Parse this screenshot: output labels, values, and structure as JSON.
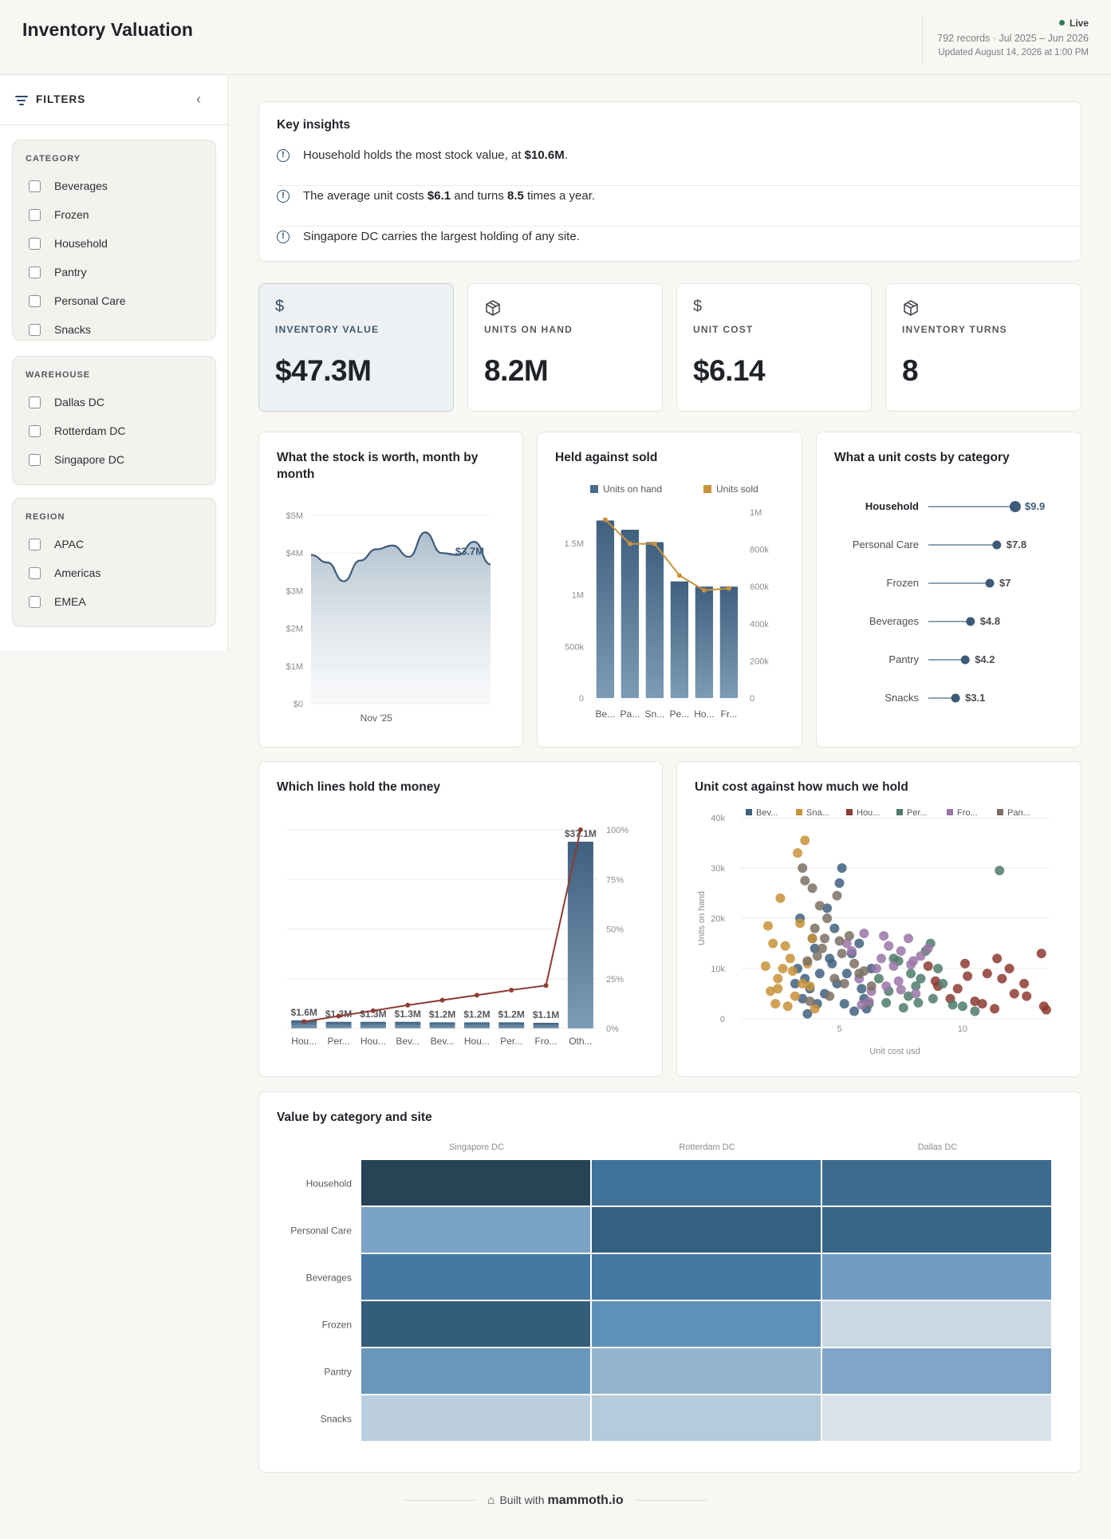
{
  "app": {
    "title": "Inventory Valuation",
    "status": "Live",
    "records_range": "792 records · Jul 2025 – Jun 2026",
    "updated": "Updated August 14, 2026 at 1:00 PM"
  },
  "sidebar": {
    "title": "FILTERS",
    "groups": [
      {
        "title": "CATEGORY",
        "items": [
          "Beverages",
          "Frozen",
          "Household",
          "Pantry",
          "Personal Care",
          "Snacks"
        ]
      },
      {
        "title": "WAREHOUSE",
        "items": [
          "Dallas DC",
          "Rotterdam DC",
          "Singapore DC"
        ]
      },
      {
        "title": "REGION",
        "items": [
          "APAC",
          "Americas",
          "EMEA"
        ]
      }
    ]
  },
  "insights": {
    "title": "Key insights",
    "items": [
      {
        "pre": "Household holds the most stock value, at ",
        "b1": "$10.6M",
        "mid": ".",
        "b2": "",
        "post": ""
      },
      {
        "pre": "The average unit costs ",
        "b1": "$6.1",
        "mid": " and turns ",
        "b2": "8.5",
        "post": " times a year."
      },
      {
        "pre": "Singapore DC carries the largest holding of any site.",
        "b1": "",
        "mid": "",
        "b2": "",
        "post": ""
      }
    ]
  },
  "kpis": [
    {
      "label": "INVENTORY VALUE",
      "value": "$47.3M",
      "icon": "dollar-icon"
    },
    {
      "label": "UNITS ON HAND",
      "value": "8.2M",
      "icon": "box-icon"
    },
    {
      "label": "UNIT COST",
      "value": "$6.14",
      "icon": "dollar-icon"
    },
    {
      "label": "INVENTORY TURNS",
      "value": "8",
      "icon": "box-icon"
    }
  ],
  "footer": {
    "prefix": "Built with",
    "brand": "mammoth.io"
  },
  "chart_data": [
    {
      "id": "stock-worth",
      "type": "area",
      "title": "What the stock is worth, month by month",
      "xlabel": "",
      "ylabel": "",
      "x_tick_labels": [
        "Nov '25"
      ],
      "y_tick_labels": [
        "$0",
        "$1M",
        "$2M",
        "$3M",
        "$4M",
        "$5M"
      ],
      "ylim": [
        0,
        5
      ],
      "values": [
        3.95,
        3.75,
        3.25,
        3.8,
        4.1,
        4.2,
        3.9,
        4.55,
        4.0,
        3.95,
        4.3,
        3.7
      ],
      "end_label": "$3.7M",
      "color": "#3d5a78"
    },
    {
      "id": "held-vs-sold",
      "type": "bar",
      "title": "Held against sold",
      "categories": [
        "Be...",
        "Pa...",
        "Sn...",
        "Pe...",
        "Ho...",
        "Fr..."
      ],
      "series": [
        {
          "name": "Units on hand",
          "values": [
            1720000,
            1630000,
            1510000,
            1130000,
            1080000,
            1080000
          ],
          "axis": "left",
          "color": "#4a6d8c"
        },
        {
          "name": "Units sold",
          "values": [
            960000,
            830000,
            830000,
            660000,
            580000,
            590000
          ],
          "axis": "right",
          "color": "#c8923a"
        }
      ],
      "y_left_ticks": [
        "0",
        "500k",
        "1M",
        "1.5M"
      ],
      "y_left_lim": [
        0,
        1800000
      ],
      "y_right_ticks": [
        "0",
        "200k",
        "400k",
        "600k",
        "800k",
        "1M"
      ],
      "y_right_lim": [
        0,
        1000000
      ],
      "legend": "top"
    },
    {
      "id": "unit-cost-category",
      "type": "bar",
      "title": "What a unit costs by category",
      "categories": [
        "Household",
        "Personal Care",
        "Frozen",
        "Beverages",
        "Pantry",
        "Snacks"
      ],
      "values": [
        9.9,
        7.8,
        7.0,
        4.8,
        4.2,
        3.1
      ],
      "labels": [
        "$9.9",
        "$7.8",
        "$7",
        "$4.8",
        "$4.2",
        "$3.1"
      ],
      "xlim": [
        0,
        10
      ]
    },
    {
      "id": "lines-hold-money",
      "type": "bar",
      "title": "Which lines hold the money",
      "categories": [
        "Hou...",
        "Per...",
        "Hou...",
        "Bev...",
        "Bev...",
        "Hou...",
        "Per...",
        "Fro...",
        "Oth..."
      ],
      "values": [
        1.6,
        1.3,
        1.3,
        1.3,
        1.2,
        1.2,
        1.2,
        1.1,
        37.1
      ],
      "labels": [
        "$1.6M",
        "$1.3M",
        "$1.3M",
        "$1.3M",
        "$1.2M",
        "$1.2M",
        "$1.2M",
        "$1.1M",
        "$37.1M"
      ],
      "cumulative_pct": [
        3.4,
        6.2,
        8.9,
        11.7,
        14.2,
        16.7,
        19.3,
        21.6,
        100
      ],
      "y_right_ticks": [
        "0%",
        "25%",
        "50%",
        "75%",
        "100%"
      ],
      "ylim": [
        0,
        37.1
      ]
    },
    {
      "id": "cost-vs-hold",
      "type": "scatter",
      "title": "Unit cost against how much we hold",
      "xlabel": "Unit cost usd",
      "ylabel": "Units on hand",
      "x_ticks": [
        5,
        10
      ],
      "y_ticks": [
        "0",
        "10k",
        "20k",
        "30k",
        "40k"
      ],
      "xlim": [
        1,
        13.5
      ],
      "ylim": [
        0,
        40000
      ],
      "legend": "top",
      "series": [
        {
          "name": "Bev...",
          "color": "#3f607f",
          "points": [
            [
              3.8,
              6000
            ],
            [
              4.2,
              9000
            ],
            [
              3.5,
              4000
            ],
            [
              4.6,
              12000
            ],
            [
              5.2,
              3000
            ],
            [
              4.0,
              14000
            ],
            [
              3.3,
              10000
            ],
            [
              6.1,
              2000
            ],
            [
              4.9,
              7000
            ],
            [
              5.5,
              13000
            ],
            [
              3.7,
              1000
            ],
            [
              4.4,
              5000
            ],
            [
              5.0,
              27000
            ],
            [
              4.5,
              22000
            ],
            [
              5.1,
              30000
            ],
            [
              3.9,
              16000
            ],
            [
              6.0,
              4000
            ],
            [
              5.6,
              1500
            ],
            [
              4.8,
              18000
            ],
            [
              5.3,
              9000
            ],
            [
              3.6,
              8000
            ],
            [
              4.1,
              3000
            ],
            [
              6.3,
              10000
            ],
            [
              5.8,
              15000
            ],
            [
              3.4,
              20000
            ],
            [
              4.7,
              11000
            ],
            [
              5.9,
              6000
            ],
            [
              3.2,
              7000
            ]
          ]
        },
        {
          "name": "Sna...",
          "color": "#c8923a",
          "points": [
            [
              2.2,
              5500
            ],
            [
              2.5,
              8000
            ],
            [
              3.0,
              12000
            ],
            [
              2.8,
              14500
            ],
            [
              3.1,
              9500
            ],
            [
              2.4,
              3000
            ],
            [
              3.6,
              35500
            ],
            [
              3.3,
              33000
            ],
            [
              2.6,
              24000
            ],
            [
              2.1,
              18500
            ],
            [
              3.8,
              6500
            ],
            [
              2.9,
              2500
            ],
            [
              3.5,
              7000
            ],
            [
              2.3,
              15000
            ],
            [
              3.2,
              4500
            ],
            [
              4.0,
              2000
            ],
            [
              2.7,
              10000
            ],
            [
              3.4,
              19000
            ],
            [
              3.7,
              11000
            ],
            [
              2.0,
              10500
            ],
            [
              3.9,
              16000
            ],
            [
              2.5,
              6000
            ]
          ]
        },
        {
          "name": "Hou...",
          "color": "#8d3b32",
          "points": [
            [
              9.5,
              4000
            ],
            [
              10.2,
              8500
            ],
            [
              11.4,
              12000
            ],
            [
              12.1,
              5000
            ],
            [
              13.3,
              2500
            ],
            [
              10.8,
              3000
            ],
            [
              9.0,
              6500
            ],
            [
              11.0,
              9000
            ],
            [
              12.5,
              7000
            ],
            [
              8.6,
              10500
            ],
            [
              13.2,
              13000
            ],
            [
              11.3,
              2000
            ],
            [
              10.1,
              11000
            ],
            [
              9.8,
              6000
            ],
            [
              12.6,
              4500
            ],
            [
              11.6,
              8000
            ],
            [
              10.5,
              3500
            ],
            [
              8.9,
              7500
            ],
            [
              13.4,
              1800
            ],
            [
              11.9,
              10000
            ]
          ]
        },
        {
          "name": "Per...",
          "color": "#4f7b6a",
          "points": [
            [
              7.0,
              5500
            ],
            [
              7.8,
              4500
            ],
            [
              8.2,
              3200
            ],
            [
              6.6,
              8000
            ],
            [
              9.2,
              7000
            ],
            [
              8.5,
              13500
            ],
            [
              7.4,
              11500
            ],
            [
              10.0,
              2500
            ],
            [
              6.9,
              3200
            ],
            [
              8.8,
              4000
            ],
            [
              7.9,
              9000
            ],
            [
              9.6,
              2800
            ],
            [
              8.1,
              6500
            ],
            [
              11.5,
              29500
            ],
            [
              6.2,
              3000
            ],
            [
              8.7,
              15000
            ],
            [
              7.2,
              12000
            ],
            [
              10.5,
              1500
            ],
            [
              9.0,
              10000
            ],
            [
              7.6,
              2200
            ],
            [
              8.3,
              8000
            ]
          ]
        },
        {
          "name": "Fro...",
          "color": "#9a76a8",
          "points": [
            [
              5.5,
              13500
            ],
            [
              6.0,
              17000
            ],
            [
              7.0,
              14500
            ],
            [
              7.8,
              16000
            ],
            [
              8.3,
              12500
            ],
            [
              6.5,
              10000
            ],
            [
              7.5,
              13500
            ],
            [
              5.8,
              8000
            ],
            [
              8.0,
              11500
            ],
            [
              6.8,
              16500
            ],
            [
              7.2,
              10500
            ],
            [
              5.3,
              15000
            ],
            [
              6.3,
              5500
            ],
            [
              7.4,
              7500
            ],
            [
              8.6,
              14000
            ],
            [
              5.9,
              2800
            ],
            [
              6.7,
              12000
            ],
            [
              7.9,
              10800
            ],
            [
              6.9,
              6500
            ],
            [
              7.5,
              5800
            ],
            [
              8.1,
              5000
            ],
            [
              6.2,
              3400
            ]
          ]
        },
        {
          "name": "Pan...",
          "color": "#7d7064",
          "points": [
            [
              3.5,
              30000
            ],
            [
              3.6,
              27500
            ],
            [
              4.0,
              18000
            ],
            [
              4.2,
              22500
            ],
            [
              3.9,
              26000
            ],
            [
              4.5,
              20000
            ],
            [
              4.1,
              12500
            ],
            [
              5.0,
              15500
            ],
            [
              5.4,
              16500
            ],
            [
              4.3,
              14000
            ],
            [
              4.8,
              8000
            ],
            [
              5.2,
              7000
            ],
            [
              4.6,
              4500
            ],
            [
              3.8,
              3500
            ],
            [
              5.6,
              11000
            ],
            [
              6.0,
              9500
            ],
            [
              4.9,
              24500
            ],
            [
              4.4,
              16000
            ],
            [
              5.8,
              9000
            ],
            [
              5.1,
              13000
            ],
            [
              6.3,
              6500
            ],
            [
              3.7,
              11500
            ]
          ]
        }
      ]
    },
    {
      "id": "value-category-site",
      "type": "heatmap",
      "title": "Value by category and site",
      "columns": [
        "Singapore DC",
        "Rotterdam DC",
        "Dallas DC"
      ],
      "rows": [
        "Household",
        "Personal Care",
        "Beverages",
        "Frozen",
        "Pantry",
        "Snacks"
      ],
      "values": [
        [
          1.0,
          0.7,
          0.75
        ],
        [
          0.42,
          0.82,
          0.78
        ],
        [
          0.66,
          0.66,
          0.45
        ],
        [
          0.84,
          0.52,
          0.12
        ],
        [
          0.48,
          0.32,
          0.4
        ],
        [
          0.18,
          0.2,
          0.06
        ]
      ],
      "color_low": "#eaeef1",
      "color_high": "#264456"
    }
  ]
}
